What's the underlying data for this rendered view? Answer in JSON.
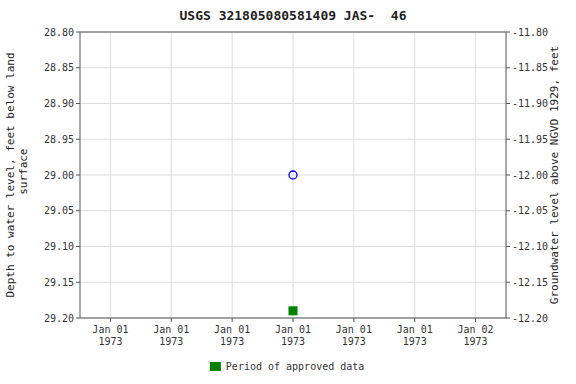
{
  "chart_data": {
    "type": "scatter",
    "title": "USGS 321805080581409 JAS-  46",
    "ylabel": "Depth to water level, feet below land\n surface",
    "y2label": "Groundwater level above NGVD 1929, feet",
    "categories": [
      "Jan 01\n1973",
      "Jan 01\n1973",
      "Jan 01\n1973",
      "Jan 01\n1973",
      "Jan 01\n1973",
      "Jan 01\n1973",
      "Jan 02\n1973"
    ],
    "series": [
      {
        "color": "#0000ff",
        "marker": "circle-open",
        "values": [
          null,
          null,
          null,
          29,
          null,
          null,
          null
        ]
      },
      {
        "name": "Period of approved data",
        "color": "#008000",
        "marker": "square",
        "values": [
          null,
          null,
          null,
          29.19,
          null,
          null,
          null
        ]
      }
    ],
    "ylim": [
      29.2,
      28.8
    ],
    "yticks": [
      {
        "value": 28.8,
        "label": "28.80"
      },
      28.85,
      {
        "value": 28.9,
        "label": "28.90"
      },
      28.95,
      {
        "value": 29,
        "label": "29.00"
      },
      29.05,
      {
        "value": 29.1,
        "label": "29.10"
      },
      29.15,
      {
        "value": 29.2,
        "label": "29.20"
      }
    ],
    "y2lim": [
      -12.2,
      -11.8
    ],
    "y2ticks": [
      {
        "value": -11.8,
        "label": "-11.80"
      },
      -11.85,
      {
        "value": -11.9,
        "label": "-11.90"
      },
      -11.95,
      {
        "value": -12,
        "label": "-12.00"
      },
      -12.05,
      {
        "value": -12.1,
        "label": "-12.10"
      },
      -12.15,
      {
        "value": -12.2,
        "label": "-12.20"
      }
    ],
    "grid": true,
    "legend": "bottom"
  }
}
